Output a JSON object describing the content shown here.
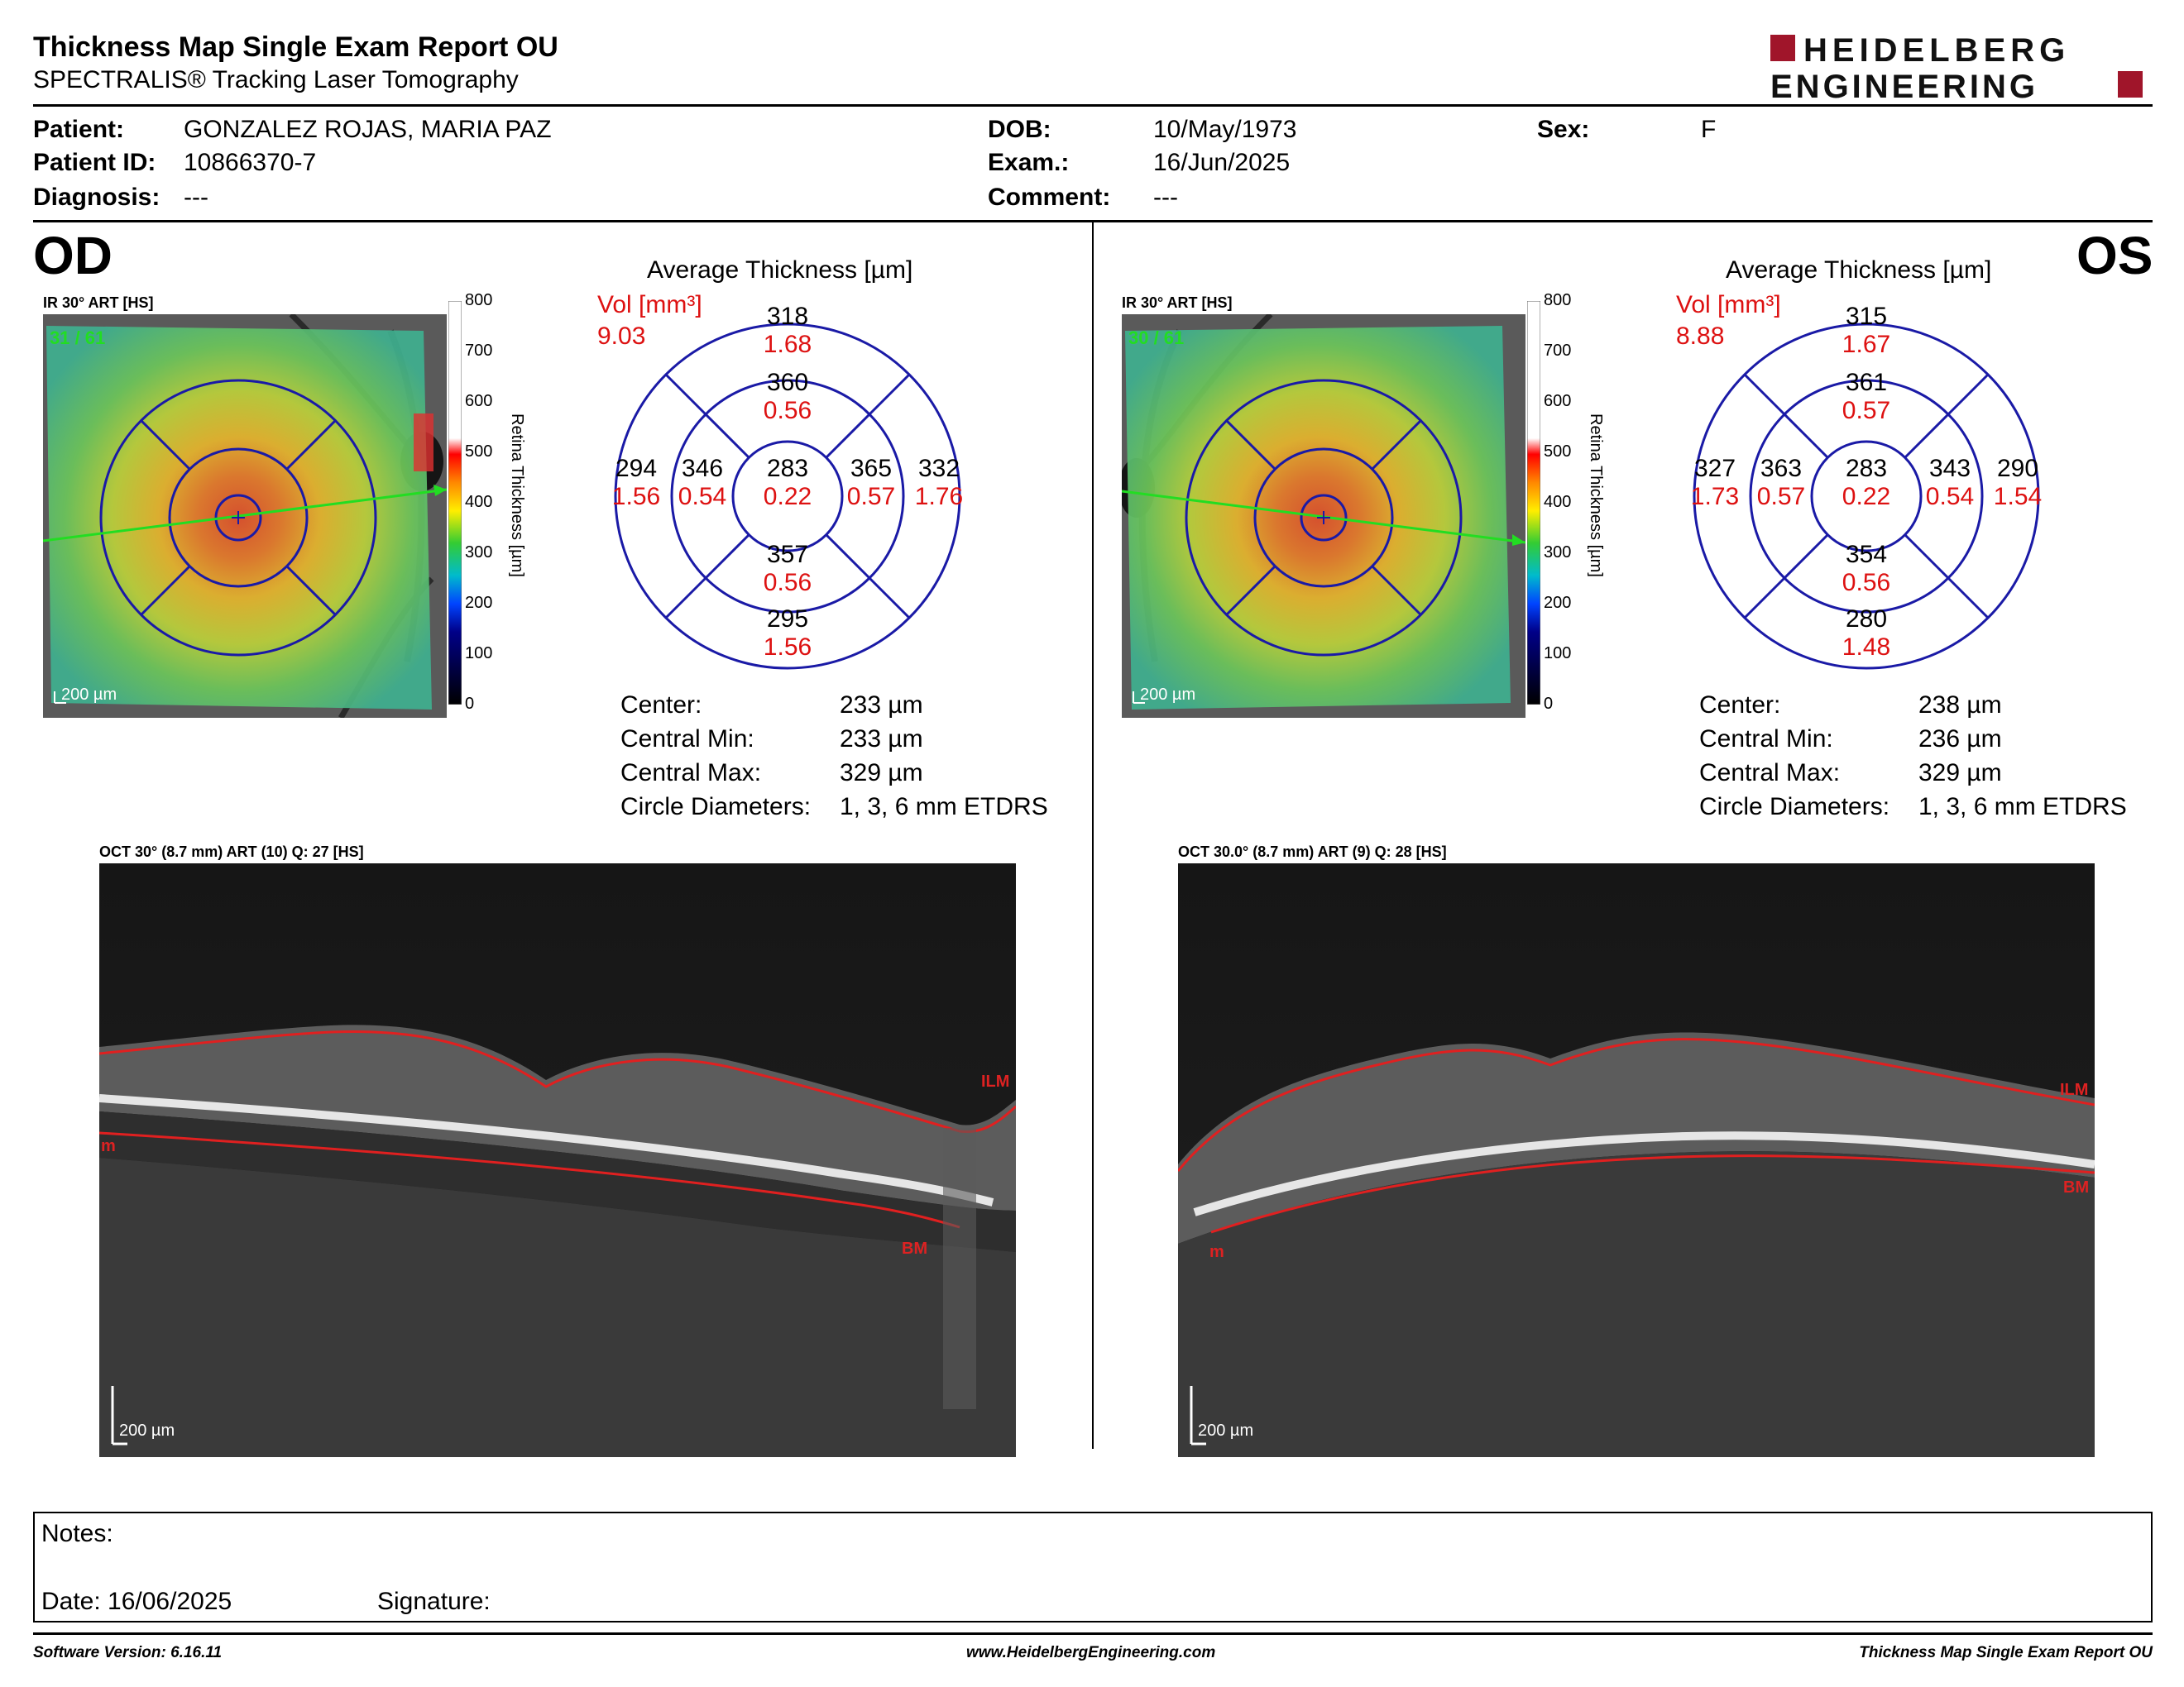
{
  "header": {
    "title": "Thickness Map Single Exam Report OU",
    "subtitle": "SPECTRALIS® Tracking Laser Tomography",
    "logo_line1": "HEIDELBERG",
    "logo_line2": "ENGINEERING",
    "logo_color": "#a0152a"
  },
  "patient": {
    "patient_label": "Patient:",
    "patient_value": "GONZALEZ ROJAS, MARIA PAZ",
    "id_label": "Patient ID:",
    "id_value": "10866370-7",
    "diagnosis_label": "Diagnosis:",
    "diagnosis_value": "---",
    "dob_label": "DOB:",
    "dob_value": "10/May/1973",
    "exam_label": "Exam.:",
    "exam_value": "16/Jun/2025",
    "comment_label": "Comment:",
    "comment_value": "---",
    "sex_label": "Sex:",
    "sex_value": "F"
  },
  "scale": {
    "ticks": [
      "800",
      "700",
      "600",
      "500",
      "400",
      "300",
      "200",
      "100",
      "0"
    ],
    "title": "Retina Thickness [µm]"
  },
  "od": {
    "eye_label": "OD",
    "fundus_label": "IR 30° ART [HS]",
    "fundus_counter": "31 / 61",
    "fundus_scalebar": "200 µm",
    "avg_title": "Average Thickness [µm]",
    "vol_label": "Vol [mm³]",
    "vol_total": "9.03",
    "sectors": {
      "center_t": "283",
      "center_v": "0.22",
      "inner_sup_t": "360",
      "inner_sup_v": "0.56",
      "inner_inf_t": "357",
      "inner_inf_v": "0.56",
      "inner_left_t": "346",
      "inner_left_v": "0.54",
      "inner_right_t": "365",
      "inner_right_v": "0.57",
      "outer_sup_t": "318",
      "outer_sup_v": "1.68",
      "outer_inf_t": "295",
      "outer_inf_v": "1.56",
      "outer_left_t": "294",
      "outer_left_v": "1.56",
      "outer_right_t": "332",
      "outer_right_v": "1.76"
    },
    "stats": {
      "center_label": "Center:",
      "center_value": "233 µm",
      "min_label": "Central Min:",
      "min_value": "233 µm",
      "max_label": "Central Max:",
      "max_value": "329 µm",
      "diam_label": "Circle Diameters:",
      "diam_value": "1, 3, 6 mm ETDRS"
    },
    "oct_label": "OCT 30° (8.7 mm) ART (10) Q: 27 [HS]",
    "oct_scalebar": "200 µm",
    "ilm": "ILM",
    "bm": "BM",
    "m": "m"
  },
  "os": {
    "eye_label": "OS",
    "fundus_label": "IR 30° ART [HS]",
    "fundus_counter": "30 / 61",
    "fundus_scalebar": "200 µm",
    "avg_title": "Average Thickness [µm]",
    "vol_label": "Vol [mm³]",
    "vol_total": "8.88",
    "sectors": {
      "center_t": "283",
      "center_v": "0.22",
      "inner_sup_t": "361",
      "inner_sup_v": "0.57",
      "inner_inf_t": "354",
      "inner_inf_v": "0.56",
      "inner_left_t": "363",
      "inner_left_v": "0.57",
      "inner_right_t": "343",
      "inner_right_v": "0.54",
      "outer_sup_t": "315",
      "outer_sup_v": "1.67",
      "outer_inf_t": "280",
      "outer_inf_v": "1.48",
      "outer_left_t": "327",
      "outer_left_v": "1.73",
      "outer_right_t": "290",
      "outer_right_v": "1.54"
    },
    "stats": {
      "center_label": "Center:",
      "center_value": "238 µm",
      "min_label": "Central Min:",
      "min_value": "236 µm",
      "max_label": "Central Max:",
      "max_value": "329 µm",
      "diam_label": "Circle Diameters:",
      "diam_value": "1, 3, 6 mm ETDRS"
    },
    "oct_label": "OCT 30.0° (8.7 mm) ART (9) Q: 28 [HS]",
    "oct_scalebar": "200 µm",
    "ilm": "ILM",
    "bm": "BM",
    "m": "m"
  },
  "notes": {
    "notes_label": "Notes:",
    "date_label": "Date: 16/06/2025",
    "signature_label": "Signature:"
  },
  "footer": {
    "software": "Software Version: 6.16.11",
    "website": "www.HeidelbergEngineering.com",
    "report": "Thickness Map Single Exam Report OU"
  },
  "colors": {
    "accent_red": "#d11111",
    "etdrs_blue": "#1a1aa6",
    "scan_green": "#22dd22"
  }
}
